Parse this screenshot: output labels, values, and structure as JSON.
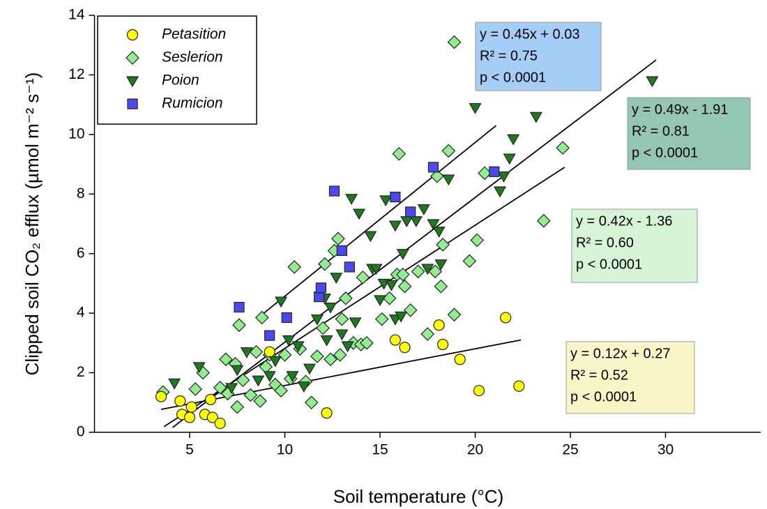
{
  "chart_data": {
    "type": "scatter",
    "x_label": "Soil temperature (°C)",
    "y_label": "Clipped soil CO₂ efflux (µmol m⁻² s⁻¹)",
    "xlim": [
      0,
      35
    ],
    "xticks": [
      5,
      10,
      15,
      20,
      25,
      30
    ],
    "ylim": [
      0,
      14
    ],
    "yticks": [
      0,
      2,
      4,
      6,
      8,
      10,
      12,
      14
    ],
    "legend": "top-left",
    "series": [
      {
        "name": "Petasition",
        "color": "#ffff00",
        "marker": "circle",
        "x": [
          3.5,
          4.5,
          4.6,
          5.1,
          5.0,
          5.8,
          6.1,
          6.2,
          6.6,
          9.2,
          12.2,
          15.8,
          16.3,
          18.1,
          18.3,
          19.2,
          20.2,
          21.6,
          22.3
        ],
        "values": [
          1.2,
          1.05,
          0.6,
          0.85,
          0.5,
          0.6,
          1.1,
          0.5,
          0.3,
          2.7,
          0.65,
          3.1,
          2.85,
          3.6,
          2.95,
          2.45,
          1.4,
          3.85,
          1.55
        ]
      },
      {
        "name": "Seslerion",
        "color": "#90ee90",
        "marker": "diamond",
        "x": [
          3.6,
          5.3,
          5.7,
          6.6,
          6.9,
          7.0,
          7.4,
          7.5,
          7.6,
          7.8,
          8.2,
          8.5,
          8.7,
          8.8,
          9.0,
          9.2,
          9.5,
          9.8,
          10.0,
          10.3,
          10.5,
          10.8,
          11.1,
          11.4,
          11.7,
          12.0,
          12.1,
          12.4,
          12.6,
          12.8,
          12.9,
          13.0,
          13.2,
          13.6,
          14.0,
          14.1,
          14.3,
          15.1,
          15.5,
          15.9,
          16.0,
          16.2,
          16.3,
          16.6,
          17.0,
          17.5,
          17.9,
          18.0,
          18.2,
          18.3,
          18.6,
          18.9,
          18.9,
          19.7,
          20.1,
          20.5,
          23.6,
          24.6
        ],
        "values": [
          1.35,
          1.45,
          2.0,
          1.5,
          2.45,
          1.3,
          2.3,
          0.85,
          3.6,
          1.75,
          1.25,
          2.7,
          1.05,
          3.85,
          2.2,
          2.6,
          1.6,
          1.4,
          2.6,
          1.8,
          5.55,
          2.8,
          1.7,
          1.0,
          2.55,
          3.5,
          5.65,
          2.45,
          6.1,
          6.5,
          2.6,
          3.8,
          4.5,
          3.0,
          2.95,
          5.2,
          3.0,
          3.8,
          4.5,
          5.3,
          9.35,
          5.3,
          4.9,
          4.1,
          5.4,
          3.3,
          5.4,
          8.6,
          4.9,
          6.3,
          9.45,
          3.95,
          13.1,
          5.75,
          6.45,
          8.7,
          7.1,
          9.55
        ]
      },
      {
        "name": "Poion",
        "color": "#1f7a1f",
        "marker": "triangle-down",
        "x": [
          4.2,
          5.5,
          7.2,
          7.5,
          8.0,
          8.6,
          9.2,
          9.8,
          10.2,
          10.7,
          11.0,
          11.3,
          11.7,
          12.2,
          12.4,
          12.7,
          13.0,
          13.3,
          13.5,
          13.7,
          13.9,
          14.5,
          14.6,
          15.0,
          15.2,
          15.3,
          15.6,
          15.8,
          15.8,
          16.1,
          16.2,
          16.4,
          16.9,
          17.3,
          17.5,
          17.8,
          18.1,
          18.2,
          18.6,
          20.0,
          21.3,
          21.5,
          21.8,
          22.0,
          23.2,
          29.3,
          14.8,
          12.1,
          9.5,
          10.4
        ],
        "values": [
          1.65,
          2.2,
          1.5,
          2.1,
          2.7,
          1.75,
          1.9,
          4.4,
          3.1,
          2.9,
          1.55,
          2.15,
          3.8,
          3.1,
          4.2,
          5.2,
          3.3,
          2.9,
          7.85,
          3.7,
          7.35,
          6.6,
          5.5,
          4.45,
          5.0,
          7.8,
          4.95,
          6.95,
          3.8,
          3.9,
          6.0,
          7.1,
          7.1,
          7.5,
          5.5,
          7.0,
          6.75,
          5.65,
          8.5,
          10.9,
          8.1,
          8.6,
          9.2,
          9.85,
          10.6,
          11.8,
          5.5,
          4.5,
          2.4,
          1.9
        ]
      },
      {
        "name": "Rumicion",
        "color": "#4a4aef",
        "marker": "square",
        "x": [
          7.6,
          9.2,
          10.1,
          11.8,
          11.9,
          12.6,
          13.0,
          13.4,
          15.8,
          16.6,
          17.8,
          21.0
        ],
        "values": [
          4.2,
          3.25,
          3.85,
          4.55,
          4.85,
          8.1,
          6.1,
          5.55,
          7.9,
          7.4,
          8.9,
          8.75
        ]
      }
    ],
    "trendlines": [
      {
        "x": [
          3.5,
          22.4
        ],
        "values": [
          0.77,
          3.1
        ]
      },
      {
        "x": [
          3.65,
          24.7
        ],
        "values": [
          0.19,
          8.9
        ]
      },
      {
        "x": [
          4.1,
          29.5
        ],
        "values": [
          0.16,
          12.5
        ]
      },
      {
        "x": [
          8.8,
          21.1
        ],
        "values": [
          3.95,
          10.3
        ]
      }
    ],
    "annotations": [
      {
        "color": "#a6cdf5",
        "lines": [
          "y = 0.45x + 0.03",
          "R² = 0.75",
          "p < 0.0001"
        ]
      },
      {
        "color": "#94c6b2",
        "lines": [
          "y = 0.49x - 1.91",
          "R² = 0.81",
          "p < 0.0001"
        ]
      },
      {
        "color": "#d6f5d6",
        "lines": [
          "y = 0.42x - 1.36",
          "R² = 0.60",
          "p < 0.0001"
        ]
      },
      {
        "color": "#f8f5c8",
        "lines": [
          "y = 0.12x + 0.27",
          "R² = 0.52",
          "p < 0.0001"
        ]
      }
    ]
  }
}
